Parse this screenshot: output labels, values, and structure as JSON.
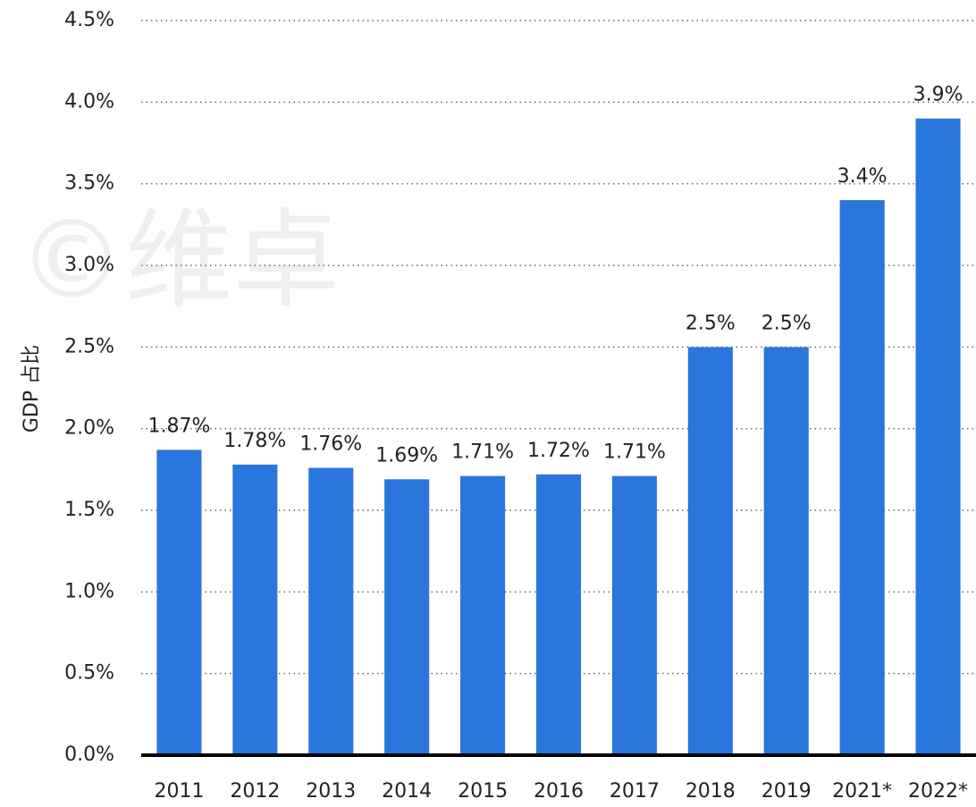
{
  "chart_data": {
    "type": "bar",
    "y_label": "GDP 占比",
    "watermark": "©维卓",
    "categories": [
      "2011",
      "2012",
      "2013",
      "2014",
      "2015",
      "2016",
      "2017",
      "2018",
      "2019",
      "2021*",
      "2022*"
    ],
    "values": [
      1.87,
      1.78,
      1.76,
      1.69,
      1.71,
      1.72,
      1.71,
      2.5,
      2.5,
      3.4,
      3.9
    ],
    "value_labels": [
      "1.87%",
      "1.78%",
      "1.76%",
      "1.69%",
      "1.71%",
      "1.72%",
      "1.71%",
      "2.5%",
      "2.5%",
      "3.4%",
      "3.9%"
    ],
    "color": "#2a76dd",
    "ylim": [
      0,
      4.5
    ],
    "yticks": [
      {
        "value": 0,
        "label": "0.0%"
      },
      {
        "value": 0.5,
        "label": "0.5%"
      },
      {
        "value": 1,
        "label": "1.0%"
      },
      {
        "value": 1.5,
        "label": "1.5%"
      },
      {
        "value": 2,
        "label": "2.0%"
      },
      {
        "value": 2.5,
        "label": "2.5%"
      },
      {
        "value": 3,
        "label": "3.0%"
      },
      {
        "value": 3.5,
        "label": "3.5%"
      },
      {
        "value": 4,
        "label": "4.0%"
      },
      {
        "value": 4.5,
        "label": "4.5%"
      }
    ],
    "grid": true
  }
}
